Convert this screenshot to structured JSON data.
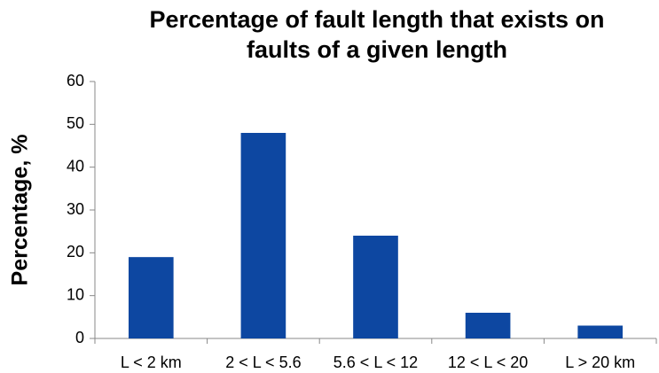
{
  "chart_data": {
    "type": "bar",
    "title": [
      "Percentage of fault length that exists on",
      "faults of a given length"
    ],
    "y_label": "Percentage, %",
    "categories": [
      "L < 2 km",
      "2 < L < 5.6",
      "5.6 < L < 12",
      "12 < L < 20",
      "L > 20 km"
    ],
    "values": [
      19,
      48,
      24,
      6,
      3
    ],
    "color": "#0d47a1",
    "ylim": [
      0,
      60
    ],
    "yticks": [
      0,
      10,
      20,
      30,
      40,
      50,
      60
    ],
    "grid": false
  }
}
